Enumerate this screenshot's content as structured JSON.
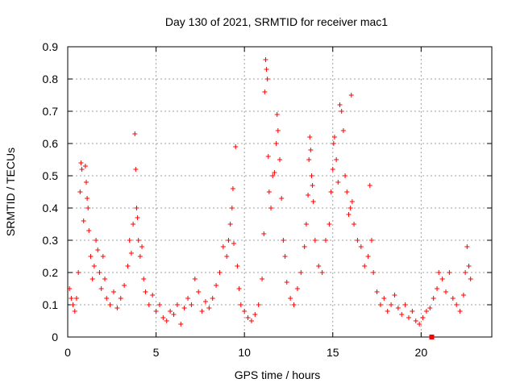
{
  "chart_data": {
    "type": "scatter",
    "title": "Day 130 of 2021, SRMTID for receiver mac1",
    "xlabel": "GPS time / hours",
    "ylabel": "SRMTID / TECUs",
    "xlim": [
      0,
      24
    ],
    "ylim": [
      0,
      0.9
    ],
    "x_ticks": [
      "0",
      "5",
      "10",
      "15",
      "20"
    ],
    "y_ticks": [
      "0",
      "0.1",
      "0.2",
      "0.3",
      "0.4",
      "0.5",
      "0.6",
      "0.7",
      "0.8",
      "0.9"
    ],
    "x_tick_values": [
      0,
      5,
      10,
      15,
      20
    ],
    "y_tick_values": [
      0,
      0.1,
      0.2,
      0.3,
      0.4,
      0.5,
      0.6,
      0.7,
      0.8,
      0.9
    ],
    "grid": true,
    "marker": "+",
    "color": "#ff0000",
    "extra_marks": [
      {
        "shape": "square",
        "x": 20.6,
        "y": 0.0
      }
    ],
    "series": [
      {
        "name": "SRMTID",
        "points": [
          [
            0.1,
            0.15
          ],
          [
            0.2,
            0.12
          ],
          [
            0.3,
            0.1
          ],
          [
            0.4,
            0.08
          ],
          [
            0.5,
            0.12
          ],
          [
            0.6,
            0.2
          ],
          [
            0.7,
            0.45
          ],
          [
            0.75,
            0.54
          ],
          [
            0.8,
            0.52
          ],
          [
            0.9,
            0.36
          ],
          [
            1.0,
            0.53
          ],
          [
            1.05,
            0.48
          ],
          [
            1.1,
            0.43
          ],
          [
            1.15,
            0.4
          ],
          [
            1.2,
            0.33
          ],
          [
            1.3,
            0.25
          ],
          [
            1.4,
            0.18
          ],
          [
            1.5,
            0.22
          ],
          [
            1.6,
            0.3
          ],
          [
            1.7,
            0.27
          ],
          [
            1.8,
            0.2
          ],
          [
            1.9,
            0.15
          ],
          [
            2.0,
            0.25
          ],
          [
            2.1,
            0.18
          ],
          [
            2.2,
            0.12
          ],
          [
            2.4,
            0.1
          ],
          [
            2.6,
            0.14
          ],
          [
            2.8,
            0.09
          ],
          [
            3.0,
            0.12
          ],
          [
            3.2,
            0.16
          ],
          [
            3.4,
            0.22
          ],
          [
            3.5,
            0.3
          ],
          [
            3.6,
            0.26
          ],
          [
            3.7,
            0.35
          ],
          [
            3.8,
            0.63
          ],
          [
            3.85,
            0.52
          ],
          [
            3.9,
            0.4
          ],
          [
            3.95,
            0.37
          ],
          [
            4.0,
            0.3
          ],
          [
            4.1,
            0.25
          ],
          [
            4.2,
            0.28
          ],
          [
            4.3,
            0.18
          ],
          [
            4.4,
            0.14
          ],
          [
            4.6,
            0.1
          ],
          [
            4.8,
            0.13
          ],
          [
            5.0,
            0.08
          ],
          [
            5.2,
            0.1
          ],
          [
            5.4,
            0.06
          ],
          [
            5.6,
            0.05
          ],
          [
            5.8,
            0.08
          ],
          [
            6.0,
            0.07
          ],
          [
            6.2,
            0.1
          ],
          [
            6.4,
            0.04
          ],
          [
            6.6,
            0.09
          ],
          [
            6.8,
            0.12
          ],
          [
            7.0,
            0.1
          ],
          [
            7.2,
            0.18
          ],
          [
            7.4,
            0.14
          ],
          [
            7.6,
            0.08
          ],
          [
            7.8,
            0.11
          ],
          [
            8.0,
            0.09
          ],
          [
            8.2,
            0.12
          ],
          [
            8.4,
            0.16
          ],
          [
            8.6,
            0.2
          ],
          [
            8.8,
            0.28
          ],
          [
            9.0,
            0.25
          ],
          [
            9.1,
            0.3
          ],
          [
            9.2,
            0.35
          ],
          [
            9.3,
            0.4
          ],
          [
            9.35,
            0.46
          ],
          [
            9.4,
            0.29
          ],
          [
            9.5,
            0.59
          ],
          [
            9.6,
            0.22
          ],
          [
            9.7,
            0.15
          ],
          [
            9.8,
            0.1
          ],
          [
            10.0,
            0.08
          ],
          [
            10.2,
            0.06
          ],
          [
            10.4,
            0.05
          ],
          [
            10.6,
            0.07
          ],
          [
            10.8,
            0.1
          ],
          [
            11.0,
            0.18
          ],
          [
            11.1,
            0.32
          ],
          [
            11.15,
            0.76
          ],
          [
            11.2,
            0.86
          ],
          [
            11.25,
            0.83
          ],
          [
            11.3,
            0.8
          ],
          [
            11.35,
            0.56
          ],
          [
            11.4,
            0.45
          ],
          [
            11.5,
            0.4
          ],
          [
            11.6,
            0.5
          ],
          [
            11.7,
            0.51
          ],
          [
            11.8,
            0.6
          ],
          [
            11.85,
            0.69
          ],
          [
            11.9,
            0.64
          ],
          [
            12.0,
            0.55
          ],
          [
            12.1,
            0.43
          ],
          [
            12.2,
            0.3
          ],
          [
            12.3,
            0.25
          ],
          [
            12.4,
            0.17
          ],
          [
            12.6,
            0.12
          ],
          [
            12.8,
            0.1
          ],
          [
            13.0,
            0.15
          ],
          [
            13.2,
            0.2
          ],
          [
            13.4,
            0.28
          ],
          [
            13.5,
            0.35
          ],
          [
            13.6,
            0.44
          ],
          [
            13.65,
            0.55
          ],
          [
            13.7,
            0.62
          ],
          [
            13.75,
            0.58
          ],
          [
            13.8,
            0.5
          ],
          [
            13.85,
            0.47
          ],
          [
            13.9,
            0.42
          ],
          [
            14.0,
            0.3
          ],
          [
            14.2,
            0.22
          ],
          [
            14.4,
            0.2
          ],
          [
            14.6,
            0.3
          ],
          [
            14.8,
            0.35
          ],
          [
            14.9,
            0.45
          ],
          [
            15.0,
            0.52
          ],
          [
            15.05,
            0.6
          ],
          [
            15.1,
            0.62
          ],
          [
            15.2,
            0.55
          ],
          [
            15.3,
            0.48
          ],
          [
            15.4,
            0.72
          ],
          [
            15.5,
            0.7
          ],
          [
            15.6,
            0.64
          ],
          [
            15.7,
            0.5
          ],
          [
            15.8,
            0.45
          ],
          [
            15.9,
            0.38
          ],
          [
            16.0,
            0.4
          ],
          [
            16.05,
            0.75
          ],
          [
            16.1,
            0.42
          ],
          [
            16.2,
            0.35
          ],
          [
            16.4,
            0.3
          ],
          [
            16.6,
            0.28
          ],
          [
            16.8,
            0.22
          ],
          [
            17.0,
            0.25
          ],
          [
            17.1,
            0.47
          ],
          [
            17.2,
            0.3
          ],
          [
            17.3,
            0.2
          ],
          [
            17.5,
            0.14
          ],
          [
            17.7,
            0.1
          ],
          [
            17.9,
            0.12
          ],
          [
            18.1,
            0.08
          ],
          [
            18.3,
            0.1
          ],
          [
            18.5,
            0.13
          ],
          [
            18.7,
            0.09
          ],
          [
            18.9,
            0.07
          ],
          [
            19.1,
            0.1
          ],
          [
            19.3,
            0.06
          ],
          [
            19.5,
            0.08
          ],
          [
            19.7,
            0.05
          ],
          [
            19.9,
            0.04
          ],
          [
            20.1,
            0.06
          ],
          [
            20.3,
            0.08
          ],
          [
            20.5,
            0.09
          ],
          [
            20.7,
            0.12
          ],
          [
            20.9,
            0.15
          ],
          [
            21.0,
            0.2
          ],
          [
            21.2,
            0.18
          ],
          [
            21.4,
            0.14
          ],
          [
            21.6,
            0.2
          ],
          [
            21.8,
            0.12
          ],
          [
            22.0,
            0.1
          ],
          [
            22.2,
            0.08
          ],
          [
            22.4,
            0.13
          ],
          [
            22.5,
            0.2
          ],
          [
            22.6,
            0.28
          ],
          [
            22.7,
            0.22
          ],
          [
            22.8,
            0.18
          ]
        ]
      }
    ]
  }
}
